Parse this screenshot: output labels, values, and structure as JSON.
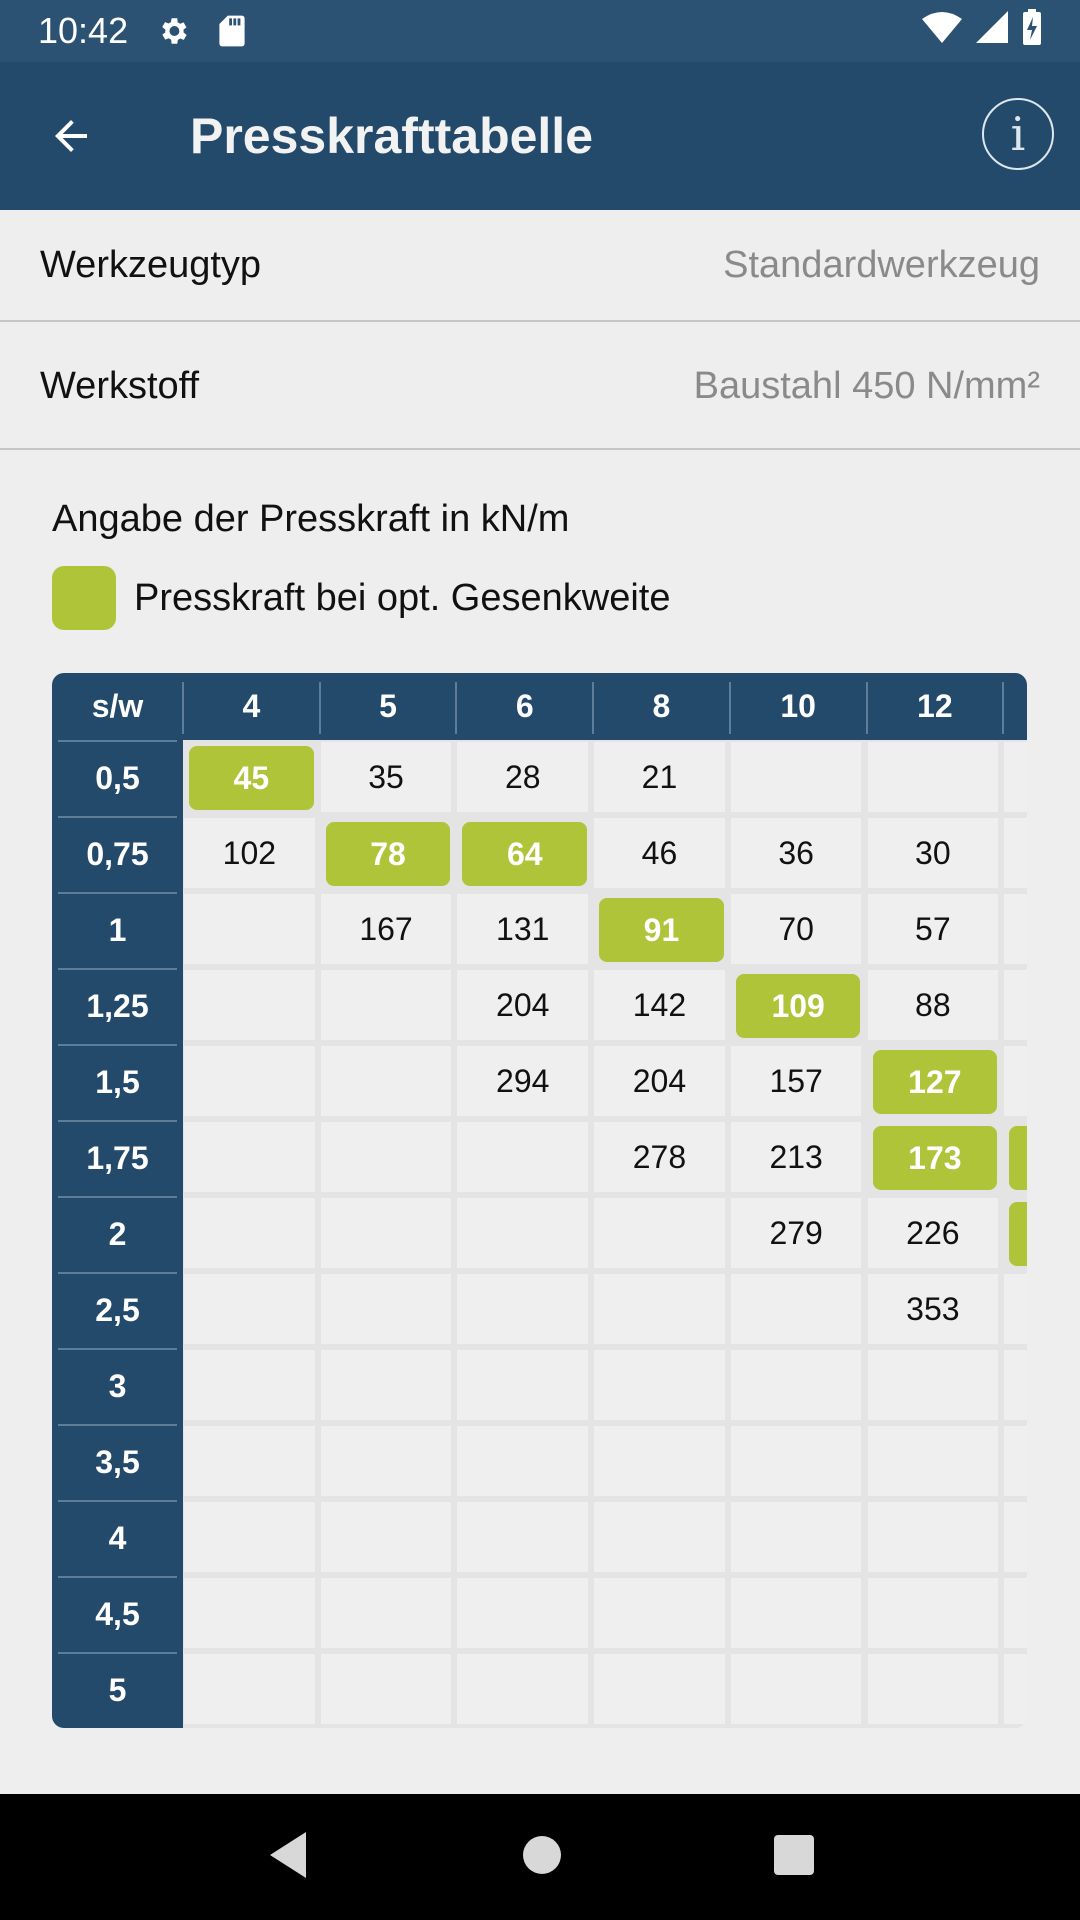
{
  "status_bar": {
    "time": "10:42",
    "icons": [
      "gear-icon",
      "sd-card-icon",
      "wifi-icon",
      "signal-icon",
      "battery-charging-icon"
    ]
  },
  "app_bar": {
    "title": "Presskrafttabelle",
    "back_icon": "arrow-left-icon",
    "info_icon": "info-icon",
    "info_glyph": "i"
  },
  "settings": [
    {
      "label": "Werkzeugtyp",
      "value": "Standardwerkzeug"
    },
    {
      "label": "Werkstoff",
      "value": "Baustahl 450 N/mm²"
    }
  ],
  "caption": "Angabe der Presskraft in kN/m",
  "legend": {
    "label": "Presskraft bei opt. Gesenkweite",
    "color": "#b0c43a"
  },
  "colors": {
    "header": "#234a6b",
    "status_bar": "#2b5272",
    "highlight": "#b0c43a"
  },
  "table": {
    "corner": "s/w",
    "columns": [
      "4",
      "5",
      "6",
      "8",
      "10",
      "12",
      ""
    ],
    "rows": [
      {
        "s": "0,5",
        "cells": [
          "45",
          "35",
          "28",
          "21",
          "",
          "",
          ""
        ],
        "opt": [
          0
        ]
      },
      {
        "s": "0,75",
        "cells": [
          "102",
          "78",
          "64",
          "46",
          "36",
          "30",
          ""
        ],
        "opt": [
          1,
          2
        ]
      },
      {
        "s": "1",
        "cells": [
          "",
          "167",
          "131",
          "91",
          "70",
          "57",
          ""
        ],
        "opt": [
          3
        ]
      },
      {
        "s": "1,25",
        "cells": [
          "",
          "",
          "204",
          "142",
          "109",
          "88",
          ""
        ],
        "opt": [
          4
        ]
      },
      {
        "s": "1,5",
        "cells": [
          "",
          "",
          "294",
          "204",
          "157",
          "127",
          ""
        ],
        "opt": [
          5
        ]
      },
      {
        "s": "1,75",
        "cells": [
          "",
          "",
          "",
          "278",
          "213",
          "173",
          ""
        ],
        "opt": [
          5,
          6
        ]
      },
      {
        "s": "2",
        "cells": [
          "",
          "",
          "",
          "",
          "279",
          "226",
          ""
        ],
        "opt": [
          6
        ]
      },
      {
        "s": "2,5",
        "cells": [
          "",
          "",
          "",
          "",
          "",
          "353",
          ""
        ],
        "opt": []
      },
      {
        "s": "3",
        "cells": [
          "",
          "",
          "",
          "",
          "",
          "",
          ""
        ],
        "opt": []
      },
      {
        "s": "3,5",
        "cells": [
          "",
          "",
          "",
          "",
          "",
          "",
          ""
        ],
        "opt": []
      },
      {
        "s": "4",
        "cells": [
          "",
          "",
          "",
          "",
          "",
          "",
          ""
        ],
        "opt": []
      },
      {
        "s": "4,5",
        "cells": [
          "",
          "",
          "",
          "",
          "",
          "",
          ""
        ],
        "opt": []
      },
      {
        "s": "5",
        "cells": [
          "",
          "",
          "",
          "",
          "",
          "",
          ""
        ],
        "opt": []
      }
    ]
  }
}
